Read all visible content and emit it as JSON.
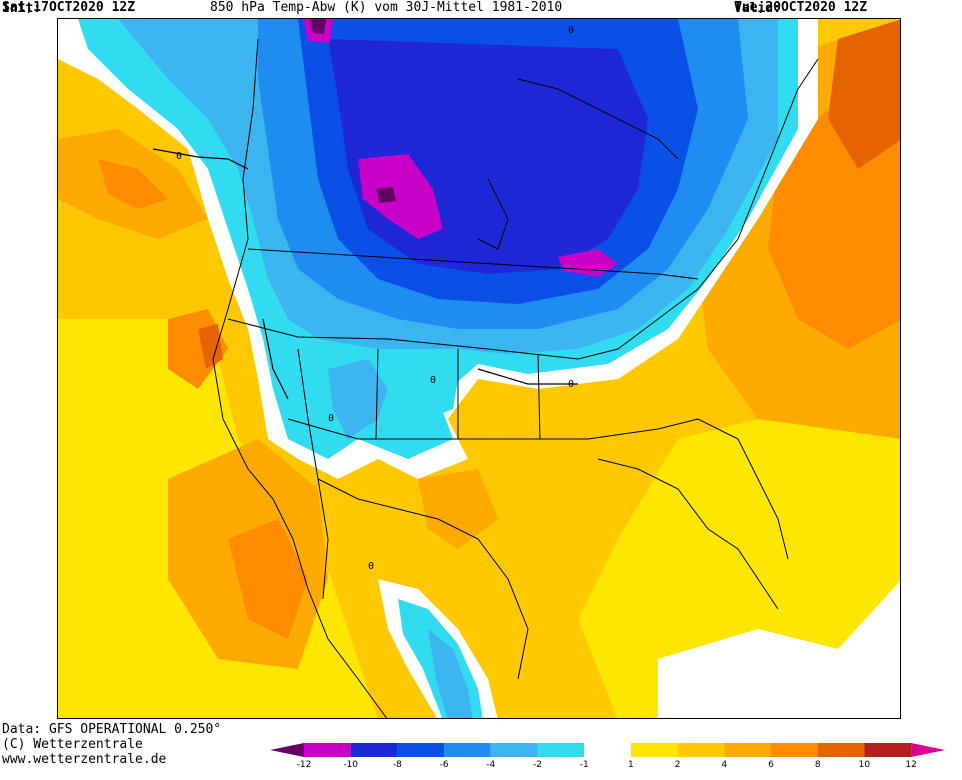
{
  "header": {
    "init_label": "Init:",
    "init_value": "Sat,17OCT2020 12Z",
    "description": "850 hPa Temp-Abw (K) vom 30J-Mittel 1981-2010",
    "valid_label": "Valid:",
    "valid_value": "Tue,20OCT2020 12Z"
  },
  "footer": {
    "data_line": "Data: GFS OPERATIONAL 0.250°",
    "copyright": "(C) Wetterzentrale",
    "website": "www.wetterzentrale.de"
  },
  "colorbar": {
    "tick_labels": [
      "-12",
      "-10",
      "-8",
      "-6",
      "-4",
      "-2",
      "-1",
      "1",
      "2",
      "4",
      "6",
      "8",
      "10",
      "12"
    ],
    "segment_colors": [
      "#c800c8",
      "#1e28d7",
      "#0a50e6",
      "#1e8cf0",
      "#3cb4f0",
      "#32dcf0",
      "#ffffff",
      "#ffe600",
      "#ffc800",
      "#ffaa00",
      "#ff8c00",
      "#e66400",
      "#b41e1e"
    ],
    "low_end_color": "#640064",
    "high_end_color": "#dc0090"
  },
  "map": {
    "contour_label": "0"
  }
}
